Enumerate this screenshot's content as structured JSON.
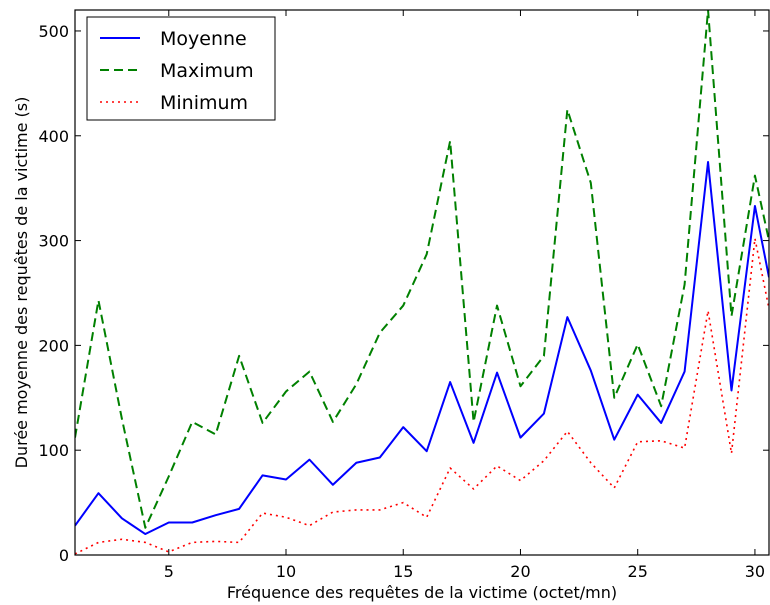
{
  "chart_data": {
    "type": "line",
    "title": "",
    "xlabel": "Fréquence des requêtes de la victime (octet/mn)",
    "ylabel": "Durée moyenne des requêtes de la victime (s)",
    "xlim": [
      1,
      30.6
    ],
    "ylim": [
      0,
      520
    ],
    "xticks": [
      5,
      10,
      15,
      20,
      25,
      30
    ],
    "yticks": [
      0,
      100,
      200,
      300,
      400,
      500
    ],
    "grid": false,
    "legend_position": "top-left",
    "x": [
      1,
      2,
      3,
      4,
      5,
      6,
      7,
      8,
      9,
      10,
      11,
      12,
      13,
      14,
      15,
      16,
      17,
      18,
      19,
      20,
      21,
      22,
      23,
      24,
      25,
      26,
      27,
      28,
      29,
      30,
      30.6
    ],
    "series": [
      {
        "name": "Moyenne",
        "color": "#0000ff",
        "style": "solid",
        "values": [
          28,
          59,
          35,
          20,
          31,
          31,
          38,
          44,
          76,
          72,
          91,
          67,
          88,
          93,
          122,
          99,
          165,
          107,
          174,
          112,
          135,
          227,
          176,
          110,
          153,
          126,
          175,
          375,
          157,
          333,
          265
        ]
      },
      {
        "name": "Maximum",
        "color": "#008000",
        "style": "dashed",
        "values": [
          112,
          243,
          130,
          26,
          75,
          127,
          115,
          190,
          126,
          156,
          175,
          127,
          163,
          212,
          238,
          287,
          395,
          127,
          238,
          161,
          190,
          425,
          355,
          150,
          201,
          142,
          258,
          520,
          228,
          362,
          300
        ]
      },
      {
        "name": "Minimum",
        "color": "#ff0000",
        "style": "dotted",
        "values": [
          1,
          12,
          15,
          12,
          3,
          12,
          13,
          12,
          40,
          36,
          28,
          41,
          43,
          43,
          50,
          36,
          83,
          63,
          85,
          71,
          90,
          118,
          88,
          64,
          108,
          109,
          102,
          233,
          97,
          302,
          235
        ]
      }
    ]
  }
}
